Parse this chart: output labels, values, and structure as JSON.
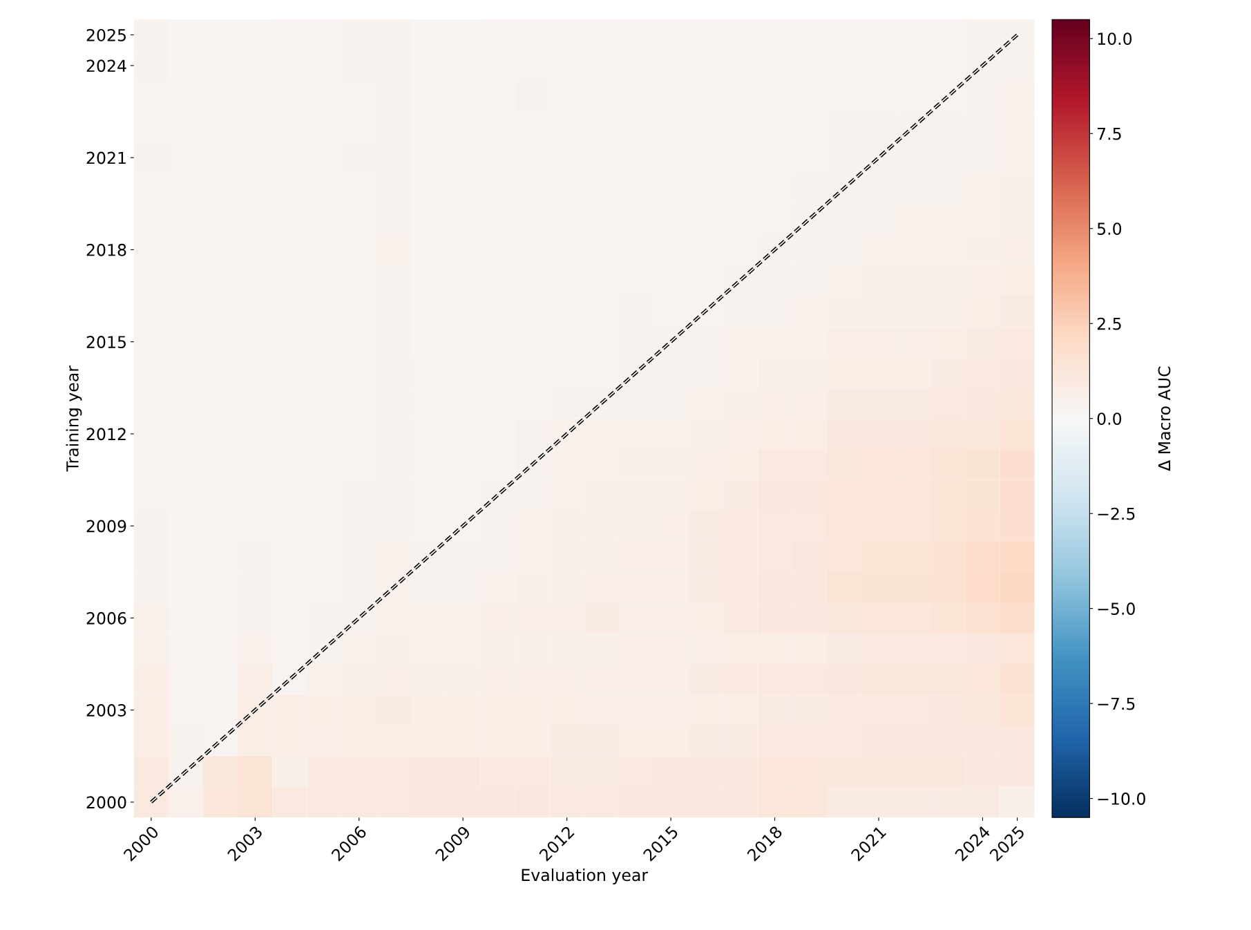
{
  "chart_data": {
    "type": "heatmap",
    "xlabel": "Evaluation year",
    "ylabel": "Training year",
    "clabel": "Δ Macro AUC",
    "categories": [
      "2000",
      null,
      null,
      "2003",
      null,
      null,
      "2006",
      null,
      null,
      "2009",
      null,
      null,
      "2012",
      null,
      null,
      "2015",
      null,
      null,
      "2018",
      null,
      null,
      "2021",
      null,
      null,
      "2024",
      "2025"
    ],
    "y_categories": [
      "2025",
      "2024",
      null,
      null,
      "2021",
      null,
      null,
      "2018",
      null,
      null,
      "2015",
      null,
      null,
      "2012",
      null,
      null,
      "2009",
      null,
      null,
      "2006",
      null,
      null,
      "2003",
      null,
      null,
      "2000"
    ],
    "cells": [
      [
        0.4,
        0.2,
        0.2,
        0.2,
        0.3,
        0.3,
        0.4,
        0.4,
        0.2,
        0.2,
        0.3,
        0.3,
        0.3,
        0.3,
        0.3,
        0.3,
        0.3,
        0.3,
        0.3,
        0.3,
        0.3,
        0.3,
        0.3,
        0.3,
        0.4,
        0.4
      ],
      [
        0.4,
        0.2,
        0.2,
        0.2,
        0.3,
        0.3,
        0.4,
        0.4,
        0.2,
        0.2,
        0.3,
        0.3,
        0.3,
        0.3,
        0.3,
        0.3,
        0.3,
        0.3,
        0.3,
        0.3,
        0.3,
        0.3,
        0.3,
        0.3,
        0.4,
        0.4
      ],
      [
        0.3,
        0.2,
        0.2,
        0.2,
        0.3,
        0.3,
        0.3,
        0.4,
        0.2,
        0.2,
        0.3,
        0.4,
        0.3,
        0.3,
        0.3,
        0.3,
        0.3,
        0.3,
        0.3,
        0.3,
        0.3,
        0.3,
        0.3,
        0.3,
        0.4,
        0.5
      ],
      [
        0.3,
        0.2,
        0.2,
        0.3,
        0.3,
        0.3,
        0.3,
        0.4,
        0.2,
        0.2,
        0.3,
        0.3,
        0.3,
        0.3,
        0.3,
        0.3,
        0.3,
        0.3,
        0.3,
        0.3,
        0.4,
        0.4,
        0.4,
        0.4,
        0.4,
        0.5
      ],
      [
        0.4,
        0.3,
        0.3,
        0.2,
        0.3,
        0.2,
        0.4,
        0.4,
        0.2,
        0.2,
        0.3,
        0.3,
        0.3,
        0.3,
        0.2,
        0.3,
        0.3,
        0.3,
        0.3,
        0.3,
        0.4,
        0.4,
        0.4,
        0.4,
        0.4,
        0.5
      ],
      [
        0.3,
        0.2,
        0.2,
        0.3,
        0.3,
        0.3,
        0.3,
        0.4,
        0.2,
        0.2,
        0.3,
        0.3,
        0.3,
        0.3,
        0.2,
        0.3,
        0.3,
        0.3,
        0.3,
        0.4,
        0.4,
        0.4,
        0.4,
        0.4,
        0.5,
        0.6
      ],
      [
        0.3,
        0.2,
        0.2,
        0.3,
        0.2,
        0.3,
        0.3,
        0.4,
        0.2,
        0.2,
        0.3,
        0.3,
        0.3,
        0.3,
        0.3,
        0.3,
        0.3,
        0.3,
        0.3,
        0.4,
        0.4,
        0.4,
        0.5,
        0.5,
        0.5,
        0.6
      ],
      [
        0.3,
        0.2,
        0.2,
        0.3,
        0.2,
        0.3,
        0.3,
        0.5,
        0.2,
        0.2,
        0.3,
        0.3,
        0.3,
        0.3,
        0.3,
        0.2,
        0.3,
        0.3,
        0.4,
        0.4,
        0.4,
        0.5,
        0.5,
        0.5,
        0.6,
        0.7
      ],
      [
        0.3,
        0.2,
        0.2,
        0.3,
        0.2,
        0.3,
        0.3,
        0.4,
        0.2,
        0.2,
        0.3,
        0.3,
        0.3,
        0.3,
        0.3,
        0.3,
        0.3,
        0.4,
        0.4,
        0.4,
        0.5,
        0.6,
        0.6,
        0.6,
        0.7,
        0.8
      ],
      [
        0.3,
        0.2,
        0.2,
        0.3,
        0.2,
        0.3,
        0.3,
        0.4,
        0.2,
        0.2,
        0.3,
        0.3,
        0.3,
        0.3,
        0.4,
        0.3,
        0.3,
        0.4,
        0.4,
        0.5,
        0.6,
        0.6,
        0.6,
        0.6,
        0.8,
        0.9
      ],
      [
        0.3,
        0.2,
        0.2,
        0.3,
        0.2,
        0.3,
        0.3,
        0.4,
        0.2,
        0.2,
        0.3,
        0.3,
        0.3,
        0.3,
        0.4,
        0.4,
        0.4,
        0.5,
        0.5,
        0.5,
        0.7,
        0.7,
        0.7,
        0.8,
        0.9,
        1.0
      ],
      [
        0.3,
        0.2,
        0.2,
        0.3,
        0.2,
        0.3,
        0.3,
        0.4,
        0.3,
        0.2,
        0.3,
        0.3,
        0.3,
        0.3,
        0.4,
        0.4,
        0.4,
        0.5,
        0.6,
        0.6,
        0.8,
        0.8,
        0.8,
        0.9,
        1.0,
        1.1
      ],
      [
        0.3,
        0.2,
        0.2,
        0.3,
        0.2,
        0.3,
        0.3,
        0.4,
        0.3,
        0.2,
        0.3,
        0.3,
        0.4,
        0.4,
        0.4,
        0.4,
        0.5,
        0.6,
        0.7,
        0.7,
        0.9,
        0.9,
        0.9,
        1.0,
        1.1,
        1.2
      ],
      [
        0.3,
        0.2,
        0.2,
        0.3,
        0.2,
        0.3,
        0.3,
        0.4,
        0.3,
        0.2,
        0.3,
        0.4,
        0.5,
        0.5,
        0.5,
        0.5,
        0.6,
        0.7,
        0.8,
        0.8,
        1.1,
        1.1,
        1.1,
        1.2,
        1.2,
        1.4
      ],
      [
        0.3,
        0.2,
        0.2,
        0.3,
        0.3,
        0.3,
        0.3,
        0.4,
        0.3,
        0.2,
        0.3,
        0.4,
        0.5,
        0.5,
        0.6,
        0.6,
        0.7,
        0.8,
        1.0,
        1.0,
        1.2,
        1.3,
        1.3,
        1.4,
        1.5,
        1.8
      ],
      [
        0.3,
        0.2,
        0.2,
        0.3,
        0.3,
        0.3,
        0.4,
        0.4,
        0.3,
        0.3,
        0.4,
        0.4,
        0.5,
        0.6,
        0.6,
        0.6,
        0.8,
        0.9,
        1.1,
        1.1,
        1.3,
        1.3,
        1.3,
        1.4,
        1.5,
        1.8
      ],
      [
        0.4,
        0.2,
        0.2,
        0.3,
        0.3,
        0.3,
        0.4,
        0.4,
        0.3,
        0.3,
        0.4,
        0.5,
        0.6,
        0.6,
        0.6,
        0.7,
        0.9,
        1.0,
        1.0,
        1.0,
        1.3,
        1.3,
        1.3,
        1.4,
        1.6,
        1.8
      ],
      [
        0.4,
        0.2,
        0.2,
        0.4,
        0.3,
        0.3,
        0.4,
        0.5,
        0.4,
        0.4,
        0.4,
        0.5,
        0.6,
        0.6,
        0.7,
        0.7,
        0.9,
        1.0,
        1.0,
        1.1,
        1.3,
        1.4,
        1.4,
        1.6,
        1.9,
        2.1
      ],
      [
        0.4,
        0.2,
        0.2,
        0.4,
        0.2,
        0.3,
        0.4,
        0.5,
        0.4,
        0.4,
        0.5,
        0.6,
        0.6,
        0.7,
        0.7,
        0.7,
        0.9,
        1.0,
        1.1,
        1.1,
        1.4,
        1.5,
        1.5,
        1.7,
        2.0,
        2.2
      ],
      [
        0.5,
        0.2,
        0.2,
        0.4,
        0.3,
        0.4,
        0.4,
        0.5,
        0.5,
        0.5,
        0.7,
        0.7,
        0.7,
        0.9,
        0.7,
        0.7,
        0.8,
        1.0,
        1.1,
        1.1,
        1.2,
        1.3,
        1.3,
        1.4,
        1.7,
        1.9
      ],
      [
        0.5,
        0.3,
        0.3,
        0.5,
        0.3,
        0.4,
        0.5,
        0.6,
        0.5,
        0.5,
        0.6,
        0.6,
        0.6,
        0.6,
        0.7,
        0.7,
        0.7,
        0.8,
        0.8,
        0.8,
        0.9,
        1.0,
        1.0,
        1.0,
        1.1,
        1.3
      ],
      [
        0.8,
        0.3,
        0.3,
        0.7,
        0.3,
        0.5,
        0.6,
        0.7,
        0.6,
        0.6,
        0.7,
        0.7,
        0.7,
        0.7,
        0.7,
        0.7,
        0.9,
        1.0,
        1.0,
        1.0,
        1.1,
        1.2,
        1.2,
        1.2,
        1.3,
        1.6
      ],
      [
        0.8,
        0.3,
        0.3,
        0.8,
        0.8,
        0.8,
        0.8,
        0.9,
        0.8,
        0.8,
        0.8,
        0.8,
        0.8,
        0.7,
        0.7,
        0.7,
        0.8,
        0.8,
        0.9,
        0.9,
        1.0,
        1.0,
        1.0,
        1.1,
        1.2,
        1.4
      ],
      [
        0.8,
        0.4,
        0.3,
        0.8,
        0.8,
        0.7,
        0.8,
        0.8,
        0.8,
        0.8,
        0.8,
        0.8,
        0.9,
        0.9,
        0.8,
        0.8,
        0.9,
        0.9,
        1.0,
        1.0,
        1.0,
        1.1,
        1.1,
        1.1,
        1.1,
        1.1
      ],
      [
        1.0,
        0.4,
        1.2,
        1.4,
        0.6,
        1.0,
        1.0,
        1.0,
        1.1,
        1.1,
        1.0,
        1.0,
        0.9,
        0.9,
        1.0,
        1.1,
        1.1,
        1.1,
        1.3,
        1.3,
        1.2,
        1.2,
        1.2,
        1.2,
        1.1,
        1.1
      ],
      [
        1.0,
        0.5,
        1.3,
        1.4,
        1.0,
        1.0,
        1.0,
        1.0,
        1.1,
        1.1,
        1.1,
        1.1,
        1.0,
        1.0,
        1.1,
        1.1,
        1.1,
        1.1,
        1.3,
        1.3,
        0.9,
        0.9,
        0.9,
        0.9,
        0.9,
        0.6
      ]
    ],
    "clim": [
      -10.5,
      10.5
    ],
    "cticks": [
      {
        "value": -10,
        "label": "−10.0"
      },
      {
        "value": -7.5,
        "label": "−7.5"
      },
      {
        "value": -5,
        "label": "−5.0"
      },
      {
        "value": -2.5,
        "label": "−2.5"
      },
      {
        "value": 0,
        "label": "0.0"
      },
      {
        "value": 2.5,
        "label": "2.5"
      },
      {
        "value": 5,
        "label": "5.0"
      },
      {
        "value": 7.5,
        "label": "7.5"
      },
      {
        "value": 10,
        "label": "10.0"
      }
    ],
    "series": [
      {
        "type": "line",
        "line_style": "dashed",
        "color": "#000000",
        "values": [
          25,
          24,
          23,
          22,
          21,
          20,
          19,
          18,
          17,
          16,
          15,
          14,
          13,
          12,
          11,
          10,
          9,
          8,
          7,
          6,
          5,
          4,
          3,
          2,
          1,
          0
        ]
      }
    ],
    "grid": false
  }
}
